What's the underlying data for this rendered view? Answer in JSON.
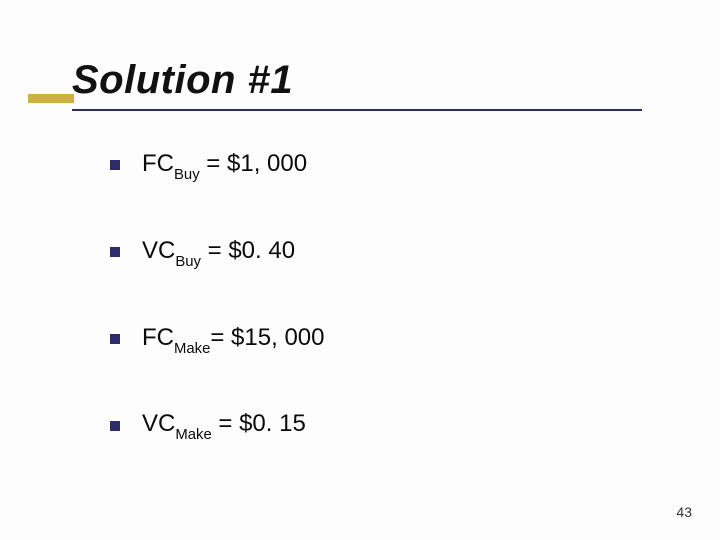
{
  "title": "Solution #1",
  "bullets": [
    {
      "var": "FC",
      "sub": "Buy",
      "rhs": " = $1, 000"
    },
    {
      "var": "VC",
      "sub": "Buy",
      "rhs": "  = $0. 40"
    },
    {
      "var": "FC",
      "sub": "Make",
      "rhs": "= $15, 000"
    },
    {
      "var": "VC",
      "sub": "Make",
      "rhs": " = $0. 15"
    }
  ],
  "page_number": "43",
  "colors": {
    "accent": "#ccb040",
    "underline": "#2c2c6c",
    "bullet_square": "#2c2c6c",
    "text": "#0a0a0a",
    "background": "#fdfdfd"
  },
  "typography": {
    "title_fontsize": 40,
    "title_weight": "bold",
    "title_style": "italic",
    "body_fontsize": 24,
    "font_family": "Verdana"
  }
}
